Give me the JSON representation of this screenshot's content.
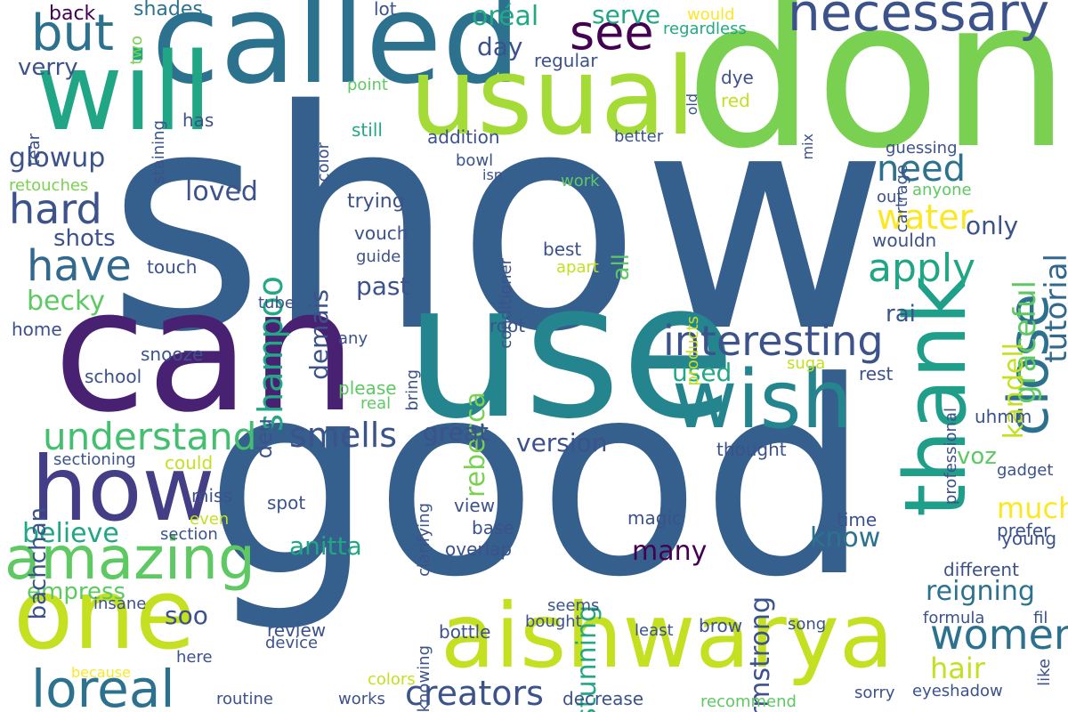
{
  "words": [
    {
      "text": "show",
      "color": "#355f8d",
      "vertical": false
    },
    {
      "text": "good",
      "color": "#355f8d",
      "vertical": false
    },
    {
      "text": "don",
      "color": "#7ad151",
      "vertical": false
    },
    {
      "text": "use",
      "color": "#25858e",
      "vertical": false
    },
    {
      "text": "can",
      "color": "#482173",
      "vertical": false
    },
    {
      "text": "called",
      "color": "#2c728e",
      "vertical": false
    },
    {
      "text": "will",
      "color": "#21a685",
      "vertical": false
    },
    {
      "text": "usual",
      "color": "#a5db36",
      "vertical": false
    },
    {
      "text": "aishwarya",
      "color": "#c5e021",
      "vertical": false
    },
    {
      "text": "thank",
      "color": "#1f9e89",
      "vertical": true
    },
    {
      "text": "one",
      "color": "#c5e021",
      "vertical": false
    },
    {
      "text": "how",
      "color": "#433e85",
      "vertical": false
    },
    {
      "text": "wish",
      "color": "#25858e",
      "vertical": false
    },
    {
      "text": "necessary",
      "color": "#3b528b",
      "vertical": false
    },
    {
      "text": "close",
      "color": "#2c728e",
      "vertical": true
    },
    {
      "text": "amazing",
      "color": "#5ec962",
      "vertical": false
    },
    {
      "text": "but",
      "color": "#2c728e",
      "vertical": false
    },
    {
      "text": "see",
      "color": "#440154",
      "vertical": false
    },
    {
      "text": "loreal",
      "color": "#2c728e",
      "vertical": false
    },
    {
      "text": "interesting",
      "color": "#3b528b",
      "vertical": false
    },
    {
      "text": "understand",
      "color": "#44bf70",
      "vertical": false
    },
    {
      "text": "smells",
      "color": "#3b528b",
      "vertical": false
    },
    {
      "text": "have",
      "color": "#31688e",
      "vertical": false
    },
    {
      "text": "apply",
      "color": "#21a685",
      "vertical": false
    },
    {
      "text": "hard",
      "color": "#3b528b",
      "vertical": false
    },
    {
      "text": "women",
      "color": "#2c728e",
      "vertical": false
    },
    {
      "text": "creators",
      "color": "#3b528b",
      "vertical": false
    },
    {
      "text": "water",
      "color": "#fde725",
      "vertical": false
    },
    {
      "text": "need",
      "color": "#2c728e",
      "vertical": false
    },
    {
      "text": "shampoo",
      "color": "#22a884",
      "vertical": true
    },
    {
      "text": "rebecca",
      "color": "#7ad151",
      "vertical": true
    },
    {
      "text": "armstrong",
      "color": "#3b528b",
      "vertical": true
    },
    {
      "text": "stunning",
      "color": "#22a884",
      "vertical": true
    },
    {
      "text": "graceful",
      "color": "#5ec962",
      "vertical": true
    },
    {
      "text": "tutorial",
      "color": "#31688e",
      "vertical": true
    },
    {
      "text": "kandell",
      "color": "#c5e021",
      "vertical": true
    },
    {
      "text": "glowup",
      "color": "#3b528b",
      "vertical": false
    },
    {
      "text": "loved",
      "color": "#3b528b",
      "vertical": false
    },
    {
      "text": "many",
      "color": "#440154",
      "vertical": false
    },
    {
      "text": "know",
      "color": "#2c728e",
      "vertical": false
    },
    {
      "text": "reigning",
      "color": "#2c728e",
      "vertical": false
    },
    {
      "text": "hair",
      "color": "#c5e021",
      "vertical": false
    },
    {
      "text": "much",
      "color": "#fde725",
      "vertical": false
    },
    {
      "text": "voz",
      "color": "#5ec962",
      "vertical": false
    },
    {
      "text": "believe",
      "color": "#21a685",
      "vertical": false
    },
    {
      "text": "empress",
      "color": "#5ec962",
      "vertical": false
    },
    {
      "text": "anitta",
      "color": "#21a685",
      "vertical": false
    },
    {
      "text": "soo",
      "color": "#3b528b",
      "vertical": false
    },
    {
      "text": "version",
      "color": "#3b528b",
      "vertical": false
    },
    {
      "text": "great",
      "color": "#3b528b",
      "vertical": false
    },
    {
      "text": "used",
      "color": "#22a884",
      "vertical": false
    },
    {
      "text": "past",
      "color": "#3b528b",
      "vertical": false
    },
    {
      "text": "rai",
      "color": "#3b528b",
      "vertical": false
    },
    {
      "text": "only",
      "color": "#3b528b",
      "vertical": false
    },
    {
      "text": "all",
      "color": "#5ec962",
      "vertical": true
    },
    {
      "text": "oréal",
      "color": "#22a884",
      "vertical": false
    },
    {
      "text": "serve",
      "color": "#21a685",
      "vertical": false
    },
    {
      "text": "day",
      "color": "#3b528b",
      "vertical": false
    },
    {
      "text": "becky",
      "color": "#5ec962",
      "vertical": false
    },
    {
      "text": "shots",
      "color": "#3b528b",
      "vertical": false
    },
    {
      "text": "verry",
      "color": "#3b528b",
      "vertical": false
    },
    {
      "text": "bachchan",
      "color": "#3b528b",
      "vertical": true
    },
    {
      "text": "deu",
      "color": "#3b528b",
      "vertical": true
    },
    {
      "text": "demais",
      "color": "#3b528b",
      "vertical": true
    },
    {
      "text": "back",
      "color": "#440154",
      "vertical": false
    },
    {
      "text": "two",
      "color": "#7ad151",
      "vertical": true
    },
    {
      "text": "shades",
      "color": "#2c728e",
      "vertical": false
    },
    {
      "text": "lot",
      "color": "#3b528b",
      "vertical": false
    },
    {
      "text": "would",
      "color": "#fde725",
      "vertical": false
    },
    {
      "text": "regardless",
      "color": "#22a884",
      "vertical": false
    },
    {
      "text": "staining",
      "color": "#3b528b",
      "vertical": true
    },
    {
      "text": "regular",
      "color": "#3b528b",
      "vertical": false
    },
    {
      "text": "dye",
      "color": "#3b528b",
      "vertical": false
    },
    {
      "text": "red",
      "color": "#c5e021",
      "vertical": false
    },
    {
      "text": "point",
      "color": "#5ec962",
      "vertical": false
    },
    {
      "text": "old",
      "color": "#3b528b",
      "vertical": true
    },
    {
      "text": "cartrage",
      "color": "#3b528b",
      "vertical": true
    },
    {
      "text": "tear",
      "color": "#3b528b",
      "vertical": true
    },
    {
      "text": "has",
      "color": "#3b528b",
      "vertical": false
    },
    {
      "text": "still",
      "color": "#22a884",
      "vertical": false
    },
    {
      "text": "addition",
      "color": "#3b528b",
      "vertical": false
    },
    {
      "text": "better",
      "color": "#3b528b",
      "vertical": false
    },
    {
      "text": "mix",
      "color": "#3b528b",
      "vertical": true
    },
    {
      "text": "color",
      "color": "#3b528b",
      "vertical": true
    },
    {
      "text": "guessing",
      "color": "#3b528b",
      "vertical": false
    },
    {
      "text": "bowl",
      "color": "#3b528b",
      "vertical": false
    },
    {
      "text": "isn",
      "color": "#3b528b",
      "vertical": false
    },
    {
      "text": "work",
      "color": "#5ec962",
      "vertical": false
    },
    {
      "text": "out",
      "color": "#3b528b",
      "vertical": false
    },
    {
      "text": "anyone",
      "color": "#5ec962",
      "vertical": false
    },
    {
      "text": "retouches",
      "color": "#7ad151",
      "vertical": false
    },
    {
      "text": "trying",
      "color": "#3b528b",
      "vertical": false
    },
    {
      "text": "conditioner",
      "color": "#3b528b",
      "vertical": true
    },
    {
      "text": "vouch",
      "color": "#3b528b",
      "vertical": false
    },
    {
      "text": "guide",
      "color": "#3b528b",
      "vertical": false
    },
    {
      "text": "best",
      "color": "#3b528b",
      "vertical": false
    },
    {
      "text": "apart",
      "color": "#c5e021",
      "vertical": false
    },
    {
      "text": "wouldn",
      "color": "#3b528b",
      "vertical": false
    },
    {
      "text": "touch",
      "color": "#3b528b",
      "vertical": false
    },
    {
      "text": "tube",
      "color": "#3b528b",
      "vertical": false
    },
    {
      "text": "products",
      "color": "#c5e021",
      "vertical": true
    },
    {
      "text": "home",
      "color": "#3b528b",
      "vertical": false
    },
    {
      "text": "root",
      "color": "#3b528b",
      "vertical": false
    },
    {
      "text": "any",
      "color": "#3b528b",
      "vertical": false
    },
    {
      "text": "bring",
      "color": "#3b528b",
      "vertical": true
    },
    {
      "text": "snooze",
      "color": "#3b528b",
      "vertical": false
    },
    {
      "text": "school",
      "color": "#3b528b",
      "vertical": false
    },
    {
      "text": "please",
      "color": "#5ec962",
      "vertical": false
    },
    {
      "text": "real",
      "color": "#5ec962",
      "vertical": false
    },
    {
      "text": "suga",
      "color": "#c5e021",
      "vertical": false
    },
    {
      "text": "rest",
      "color": "#3b528b",
      "vertical": false
    },
    {
      "text": "professional",
      "color": "#3b528b",
      "vertical": true
    },
    {
      "text": "uhmm",
      "color": "#3b528b",
      "vertical": false
    },
    {
      "text": "thought",
      "color": "#3b528b",
      "vertical": false
    },
    {
      "text": "gadget",
      "color": "#3b528b",
      "vertical": false
    },
    {
      "text": "sectioning",
      "color": "#3b528b",
      "vertical": false
    },
    {
      "text": "could",
      "color": "#c5e021",
      "vertical": false
    },
    {
      "text": "clarifying",
      "color": "#3b528b",
      "vertical": true
    },
    {
      "text": "miss",
      "color": "#3b528b",
      "vertical": false
    },
    {
      "text": "spot",
      "color": "#3b528b",
      "vertical": false
    },
    {
      "text": "view",
      "color": "#3b528b",
      "vertical": false
    },
    {
      "text": "magic",
      "color": "#3b528b",
      "vertical": false
    },
    {
      "text": "base",
      "color": "#3b528b",
      "vertical": false
    },
    {
      "text": "time",
      "color": "#3b528b",
      "vertical": false
    },
    {
      "text": "prefer",
      "color": "#3b528b",
      "vertical": false
    },
    {
      "text": "young",
      "color": "#3b528b",
      "vertical": false
    },
    {
      "text": "even",
      "color": "#c5e021",
      "vertical": false
    },
    {
      "text": "section",
      "color": "#3b528b",
      "vertical": false
    },
    {
      "text": "overlap",
      "color": "#3b528b",
      "vertical": false
    },
    {
      "text": "different",
      "color": "#3b528b",
      "vertical": false
    },
    {
      "text": "insane",
      "color": "#3b528b",
      "vertical": false
    },
    {
      "text": "knowing",
      "color": "#3b528b",
      "vertical": true
    },
    {
      "text": "seems",
      "color": "#3b528b",
      "vertical": false
    },
    {
      "text": "bought",
      "color": "#3b528b",
      "vertical": false
    },
    {
      "text": "song",
      "color": "#3b528b",
      "vertical": false
    },
    {
      "text": "formula",
      "color": "#3b528b",
      "vertical": false
    },
    {
      "text": "fil",
      "color": "#3b528b",
      "vertical": false
    },
    {
      "text": "review",
      "color": "#3b528b",
      "vertical": false
    },
    {
      "text": "device",
      "color": "#3b528b",
      "vertical": false
    },
    {
      "text": "bottle",
      "color": "#3b528b",
      "vertical": false
    },
    {
      "text": "least",
      "color": "#3b528b",
      "vertical": false
    },
    {
      "text": "brow",
      "color": "#3b528b",
      "vertical": false
    },
    {
      "text": "here",
      "color": "#3b528b",
      "vertical": false
    },
    {
      "text": "because",
      "color": "#fde725",
      "vertical": false
    },
    {
      "text": "colors",
      "color": "#c5e021",
      "vertical": false
    },
    {
      "text": "routine",
      "color": "#3b528b",
      "vertical": false
    },
    {
      "text": "works",
      "color": "#3b528b",
      "vertical": false
    },
    {
      "text": "decrease",
      "color": "#3b528b",
      "vertical": false
    },
    {
      "text": "recommend",
      "color": "#5ec962",
      "vertical": false
    },
    {
      "text": "sorry",
      "color": "#3b528b",
      "vertical": false
    },
    {
      "text": "eyeshadow",
      "color": "#3b528b",
      "vertical": false
    },
    {
      "text": "like",
      "color": "#3b528b",
      "vertical": true
    }
  ]
}
